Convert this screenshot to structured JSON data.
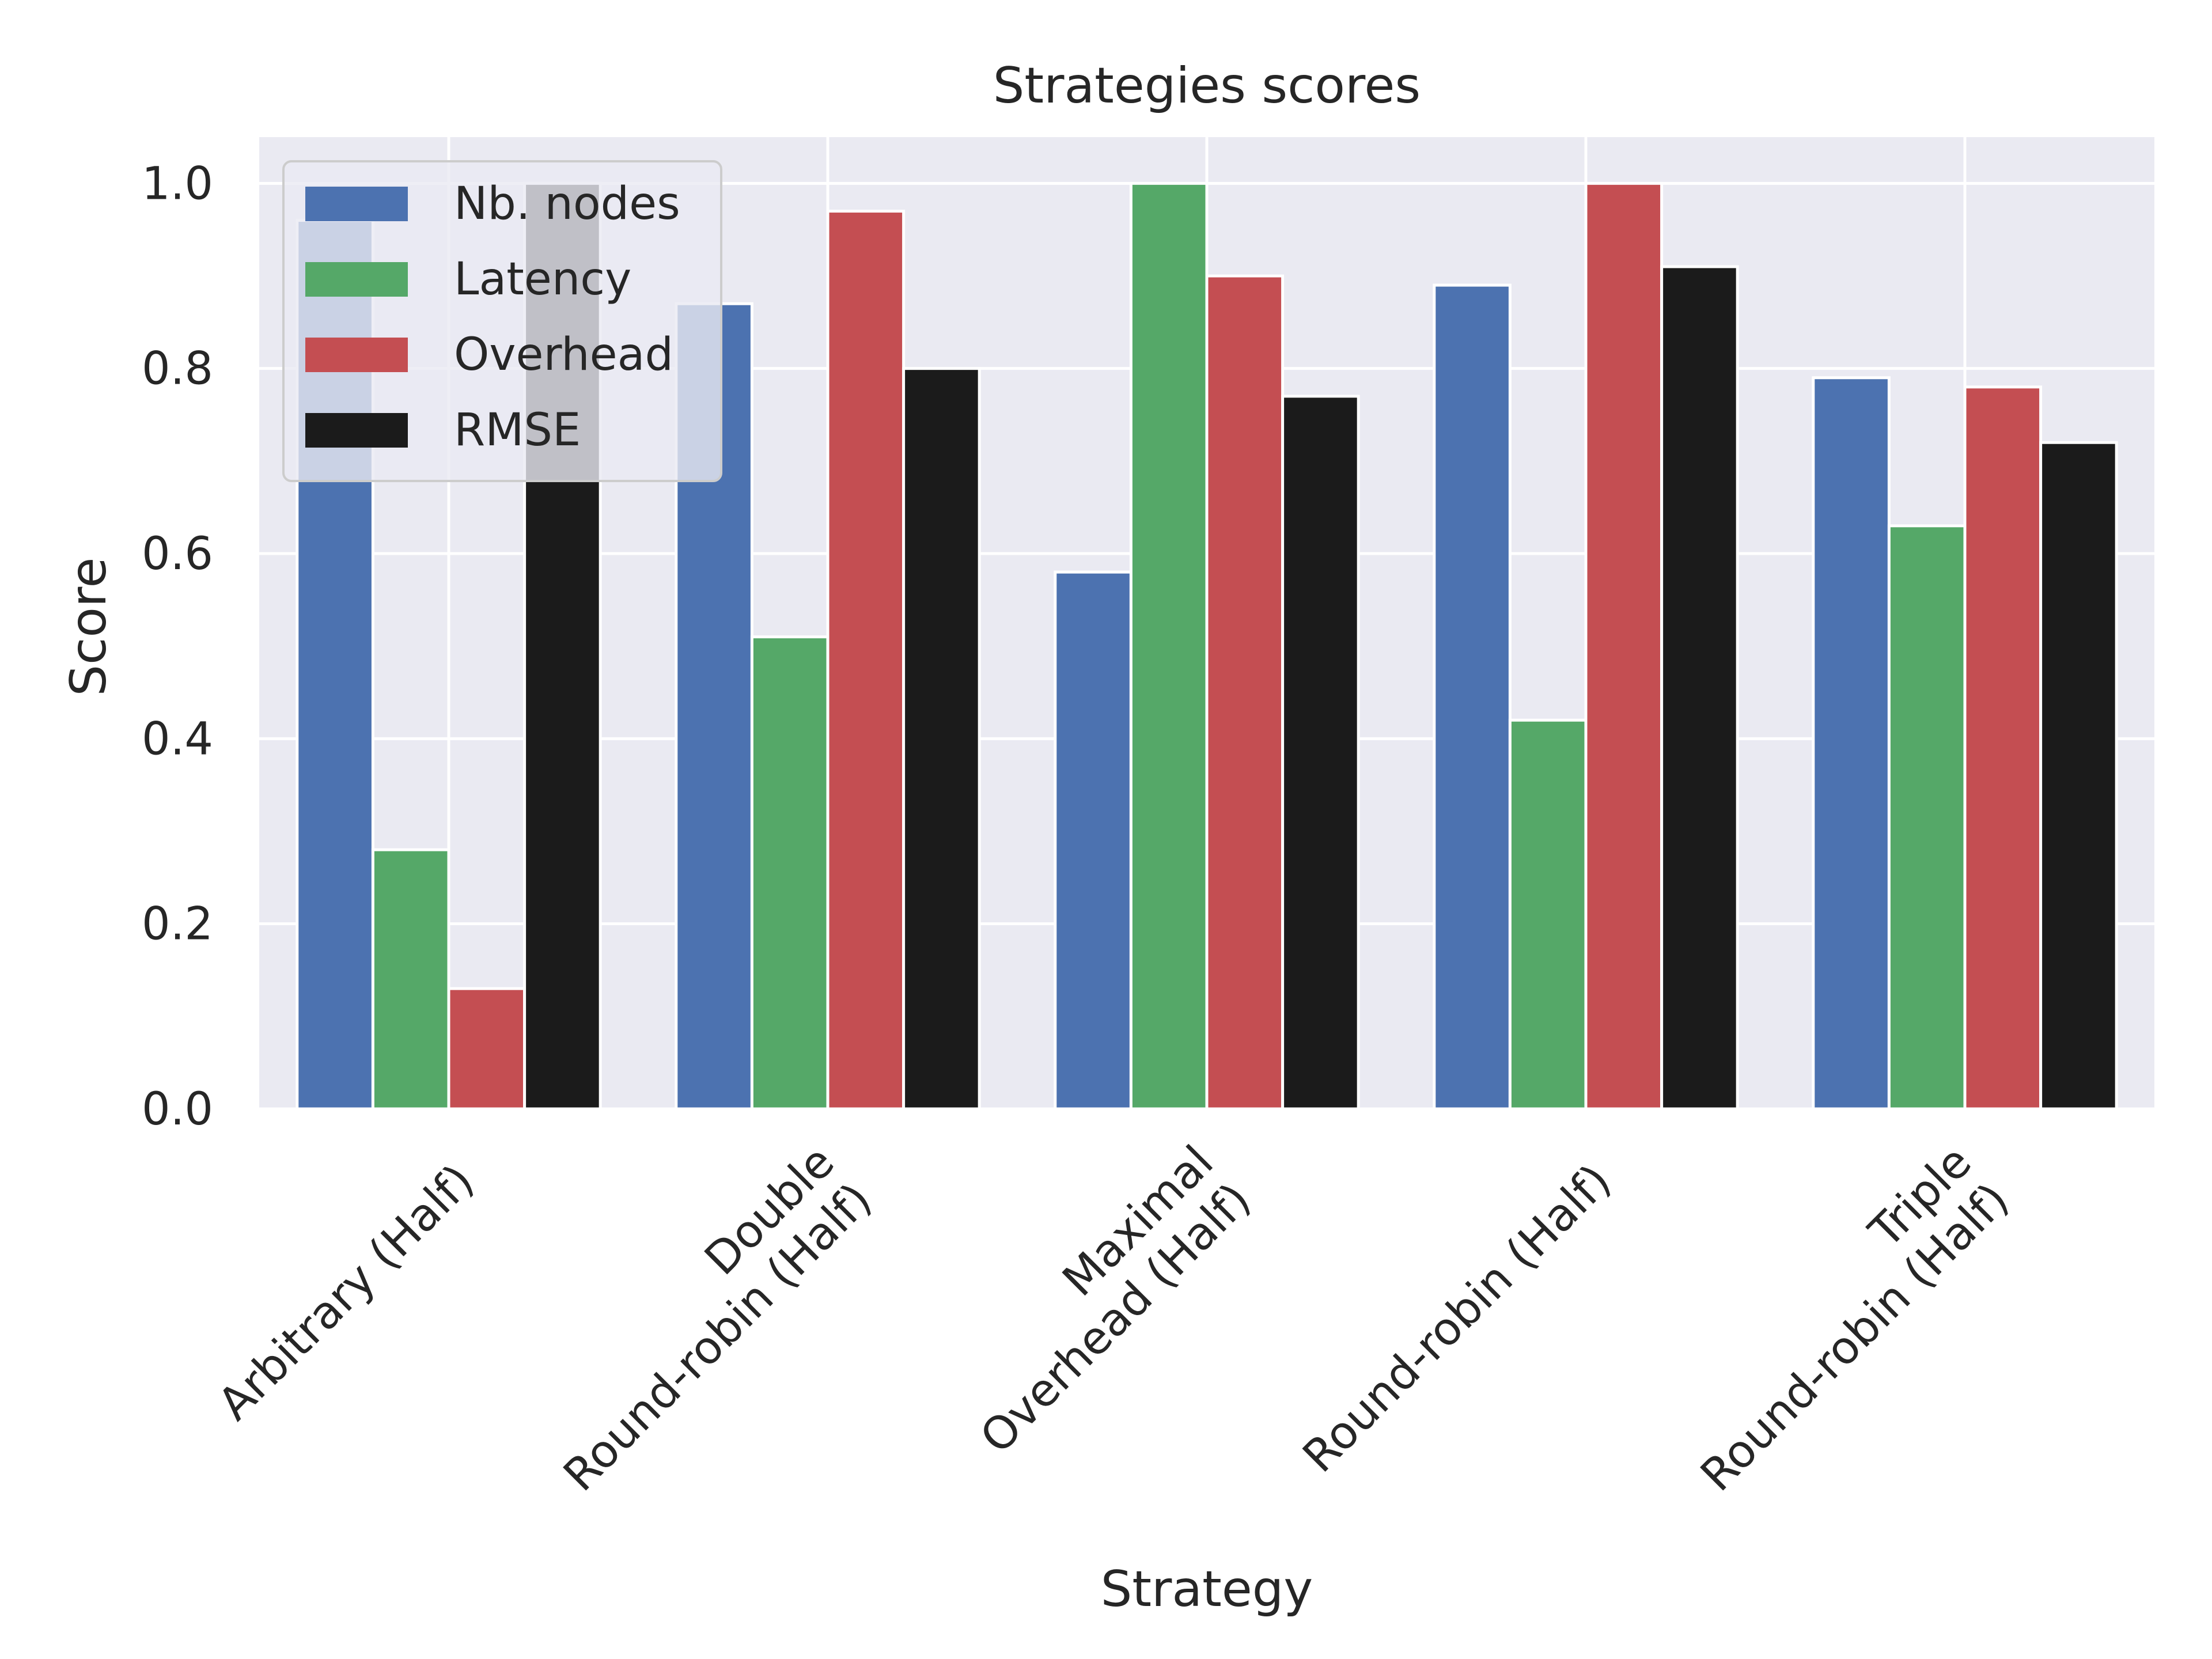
{
  "chart_data": {
    "type": "bar",
    "title": "Strategies scores",
    "xlabel": "Strategy",
    "ylabel": "Score",
    "ylim": [
      0,
      1.05
    ],
    "yticks": [
      "0.0",
      "0.2",
      "0.4",
      "0.6",
      "0.8",
      "1.0"
    ],
    "grid": true,
    "legend_position": "top-left",
    "categories": [
      [
        "Arbitrary (Half)"
      ],
      [
        "Double",
        "Round-robin (Half)"
      ],
      [
        "Maximal",
        "Overhead (Half)"
      ],
      [
        "Round-robin (Half)"
      ],
      [
        "Triple",
        "Round-robin (Half)"
      ]
    ],
    "series": [
      {
        "name": "Nb. nodes",
        "color": "#4c72b0",
        "values": [
          0.96,
          0.87,
          0.58,
          0.89,
          0.79
        ]
      },
      {
        "name": "Latency",
        "color": "#55a868",
        "values": [
          0.28,
          0.51,
          1.0,
          0.42,
          0.63
        ]
      },
      {
        "name": "Overhead",
        "color": "#c44e52",
        "values": [
          0.13,
          0.97,
          0.9,
          1.0,
          0.78
        ]
      },
      {
        "name": "RMSE",
        "color": "#1b1b1b",
        "values": [
          1.0,
          0.8,
          0.77,
          0.91,
          0.72
        ]
      }
    ],
    "style": {
      "background": "#eaeaf2",
      "grid_color": "#ffffff"
    }
  }
}
